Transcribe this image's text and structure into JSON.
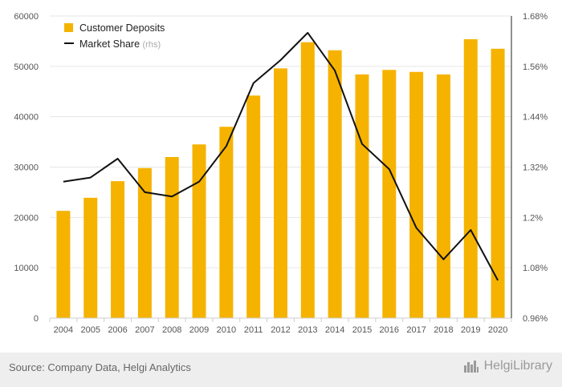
{
  "chart_data": {
    "type": "bar",
    "categories": [
      "2004",
      "2005",
      "2006",
      "2007",
      "2008",
      "2009",
      "2010",
      "2011",
      "2012",
      "2013",
      "2014",
      "2015",
      "2016",
      "2017",
      "2018",
      "2019",
      "2020"
    ],
    "series": [
      {
        "name": "Customer Deposits",
        "type": "bar",
        "axis": "left",
        "color": "#f5b300",
        "values": [
          21300,
          23900,
          27200,
          29800,
          32000,
          34500,
          38000,
          44200,
          49600,
          54800,
          53200,
          48400,
          49300,
          48900,
          48400,
          55400,
          53500
        ]
      },
      {
        "name": "Market Share",
        "name_suffix": "(rhs)",
        "type": "line",
        "axis": "right",
        "color": "#111111",
        "values": [
          1.285,
          1.295,
          1.34,
          1.26,
          1.25,
          1.285,
          1.37,
          1.52,
          1.575,
          1.64,
          1.55,
          1.375,
          1.315,
          1.175,
          1.1,
          1.17,
          1.05
        ]
      }
    ],
    "y_left": {
      "min": 0,
      "max": 60000,
      "ticks": [
        "0",
        "10000",
        "20000",
        "30000",
        "40000",
        "50000",
        "60000"
      ]
    },
    "y_right": {
      "min": 0.96,
      "max": 1.68,
      "ticks": [
        "0.96%",
        "1.08%",
        "1.2%",
        "1.32%",
        "1.44%",
        "1.56%",
        "1.68%"
      ]
    },
    "grid": true,
    "legend_position": "top-left"
  },
  "footer": {
    "source": "Source: Company Data, Helgi Analytics",
    "brand": "HelgiLibrary",
    "brand_icon": "city-skyline-icon"
  }
}
